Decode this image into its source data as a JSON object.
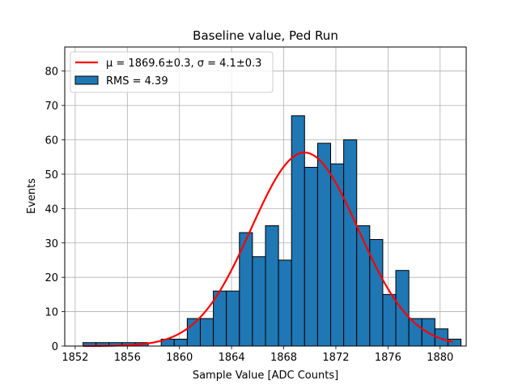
{
  "chart_data": {
    "type": "bar",
    "title": "Baseline value, Ped Run",
    "xlabel": "Sample Value [ADC Counts]",
    "ylabel": "Events",
    "xlim": [
      1851.2,
      1882.0
    ],
    "ylim": [
      0,
      87
    ],
    "x_ticks": [
      1852,
      1856,
      1860,
      1864,
      1868,
      1872,
      1876,
      1880
    ],
    "y_ticks": [
      0,
      10,
      20,
      30,
      40,
      50,
      60,
      70,
      80
    ],
    "grid": true,
    "bar_color": "#1f77b4",
    "fit_color": "#ff0000",
    "histogram": {
      "name": "RMS = 4.39",
      "bin_width": 1.0,
      "bin_edges_start": 1852.6,
      "values": [
        1,
        1,
        1,
        1,
        1,
        0,
        2,
        2,
        8,
        8,
        16,
        16,
        33,
        26,
        35,
        25,
        67,
        52,
        59,
        53,
        60,
        35,
        31,
        15,
        22,
        8,
        8,
        5,
        2
      ]
    },
    "fit": {
      "name": "μ = 1869.6±0.3, σ = 4.1±0.3",
      "mu": 1869.6,
      "sigma": 4.1,
      "amplitude": 56.3,
      "x_start": 1852.6,
      "x_end": 1881.0
    },
    "legend": {
      "location": "upper-left",
      "entries": [
        {
          "label": "μ = 1869.6±0.3, σ = 4.1±0.3",
          "kind": "line"
        },
        {
          "label": "RMS = 4.39",
          "kind": "patch"
        }
      ]
    }
  }
}
